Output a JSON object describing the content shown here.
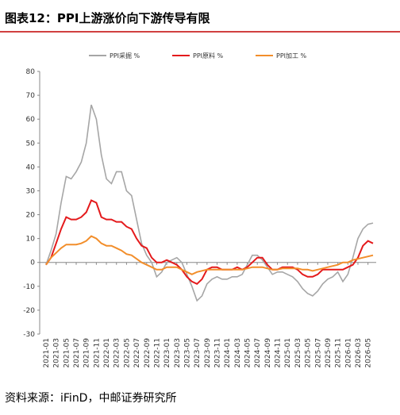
{
  "chart_data": {
    "type": "line",
    "title": "图表12：PPI上游涨价向下游传导有限",
    "source": "资料来源：iFinD，中邮证券研究所",
    "categories": [
      "2021-01",
      null,
      "2021-03",
      null,
      "2021-05",
      null,
      "2021-07",
      null,
      "2021-09",
      null,
      "2021-11",
      null,
      "2022-01",
      null,
      "2022-03",
      null,
      "2022-05",
      null,
      "2022-07",
      null,
      "2022-09",
      null,
      "2022-11",
      null,
      "2023-01",
      null,
      "2023-03",
      null,
      "2023-05",
      null,
      "2023-07",
      null,
      "2023-09",
      null,
      "2023-11",
      null,
      "2024-01",
      null,
      "2024-03",
      null,
      "2024-05",
      null,
      "2024-07",
      null,
      "2024-09",
      null,
      "2024-11",
      null,
      "2025-01",
      null,
      "2025-03",
      null,
      "2025-05",
      null,
      "2025-07",
      null,
      "2025-09",
      null,
      "2025-11",
      null,
      "2026-01",
      null,
      "2026-03",
      null,
      "2026-05",
      null
    ],
    "series": [
      {
        "name": "PPI采掘 %",
        "color": "#a6a6a6",
        "values": [
          -1,
          5,
          12,
          25,
          36,
          35,
          38,
          42,
          50,
          66,
          60,
          45,
          35,
          33,
          38,
          38,
          30,
          28,
          18,
          8,
          3,
          0,
          -6,
          -4,
          0,
          1,
          2,
          0,
          -5,
          -10,
          -16,
          -14,
          -9,
          -7,
          -6,
          -7,
          -7,
          -6,
          -6,
          -5,
          -1,
          3,
          3,
          1,
          -2,
          -5,
          -4,
          -4,
          -5,
          -6,
          -8,
          -11,
          -13,
          -14,
          -12,
          -9,
          -7,
          -6,
          -4,
          -8,
          -5,
          2,
          10,
          14,
          16,
          16.5
        ]
      },
      {
        "name": "PPI原料 %",
        "color": "#e41a1c",
        "values": [
          -1,
          2,
          8,
          14,
          19,
          18,
          18,
          19,
          21,
          26,
          25,
          19,
          18,
          18,
          17,
          17,
          15,
          14,
          10,
          7,
          6,
          2,
          0,
          0,
          1,
          0,
          -1,
          -3,
          -6,
          -8,
          -9,
          -7,
          -3,
          -2,
          -2,
          -3,
          -3,
          -3,
          -2,
          -3,
          -2,
          0,
          2,
          2,
          -1,
          -3,
          -3,
          -2,
          -2,
          -2,
          -3,
          -5,
          -6,
          -6,
          -5,
          -3,
          -3,
          -3,
          -3,
          -3,
          -2,
          -1,
          2,
          7,
          9,
          8
        ]
      },
      {
        "name": "PPI加工 %",
        "color": "#f28e2b",
        "values": [
          -1,
          2,
          4,
          6,
          7.5,
          7.5,
          7.5,
          8,
          9,
          11,
          10,
          8,
          7,
          7,
          6,
          5,
          3.5,
          3,
          1.5,
          0,
          -1,
          -2,
          -3,
          -3,
          -2,
          -2,
          -2,
          -3,
          -4,
          -5,
          -4,
          -3.5,
          -3,
          -3,
          -3,
          -3,
          -3,
          -3,
          -3,
          -3,
          -2.5,
          -2,
          -2,
          -2,
          -2.5,
          -3,
          -3,
          -2.5,
          -2.5,
          -2.5,
          -2.5,
          -3,
          -3,
          -3.5,
          -3,
          -2.5,
          -2,
          -1.5,
          -1,
          0,
          0,
          1,
          1.5,
          2,
          2.5,
          3
        ]
      }
    ],
    "ylim": [
      -30,
      80
    ],
    "yticks": [
      -30,
      -20,
      -10,
      0,
      10,
      20,
      30,
      40,
      50,
      60,
      70,
      80
    ]
  }
}
